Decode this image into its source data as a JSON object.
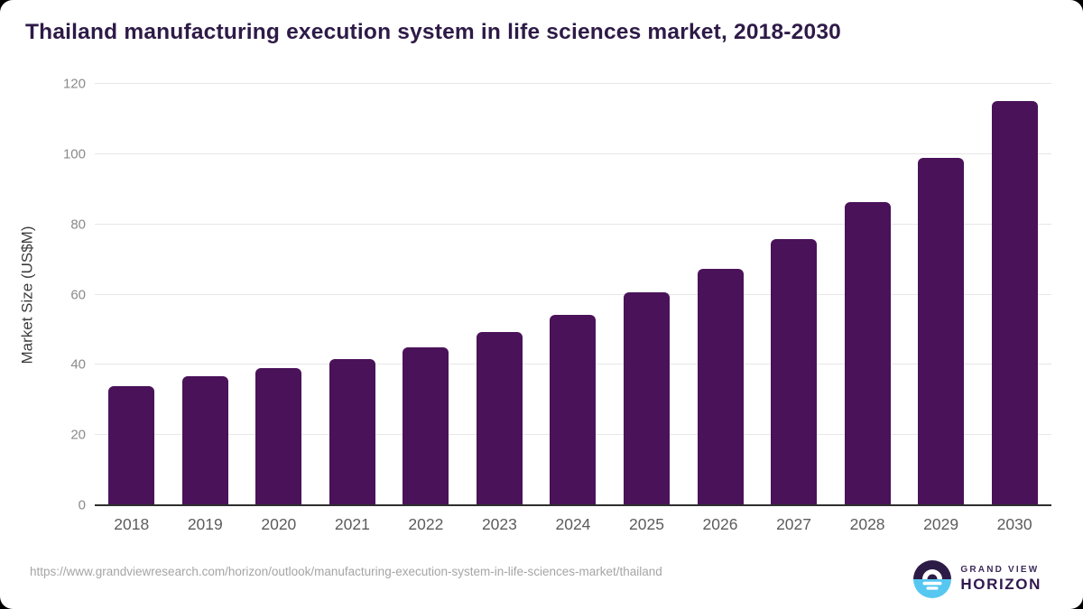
{
  "page": {
    "title": "Thailand manufacturing execution system in life sciences market, 2018-2030"
  },
  "chart_data": {
    "type": "bar",
    "title": "Thailand manufacturing execution system in life sciences market, 2018-2030",
    "xlabel": "",
    "ylabel": "Market Size (US$M)",
    "categories": [
      "2018",
      "2019",
      "2020",
      "2021",
      "2022",
      "2023",
      "2024",
      "2025",
      "2026",
      "2027",
      "2028",
      "2029",
      "2030"
    ],
    "values": [
      34.0,
      36.7,
      39.0,
      41.6,
      45.1,
      49.4,
      54.2,
      60.6,
      67.4,
      75.9,
      86.4,
      99.0,
      115.1
    ],
    "ylim": [
      0,
      120
    ],
    "yticks": [
      0,
      20,
      40,
      60,
      80,
      100,
      120
    ],
    "grid": true,
    "legend": false
  },
  "colors": {
    "bar": "#4a1259",
    "title_text": "#2e1a47",
    "gridline": "#e7e7e7",
    "axis_line": "#2e2e2e",
    "logo_purple": "#2d1b47",
    "logo_blue": "#56c7f1"
  },
  "footer": {
    "source_url": "https://www.grandviewresearch.com/horizon/outlook/manufacturing-execution-system-in-life-sciences-market/thailand",
    "logo": {
      "top": "GRAND VIEW",
      "bottom": "HORIZON"
    }
  }
}
